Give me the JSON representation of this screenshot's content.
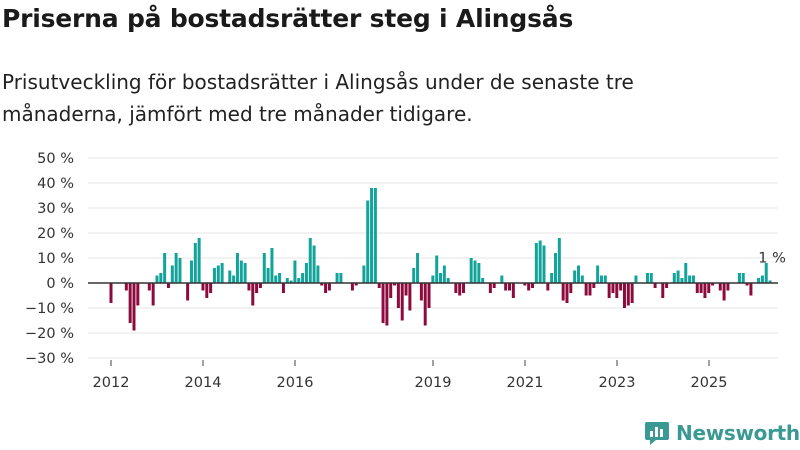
{
  "title": "Priserna på bostadsrätter steg i Alingsås",
  "subtitle": "Prisutveckling för bostadsrätter i Alingsås under de senaste tre månaderna, jämfört med tre månader tidigare.",
  "brand": {
    "name": "Newsworthy",
    "color": "#3a9a93"
  },
  "chart_data": {
    "type": "bar",
    "title": "Priserna på bostadsrätter steg i Alingsås",
    "xlabel": "",
    "ylabel": "",
    "ylim": [
      -30,
      50
    ],
    "y_ticks": [
      {
        "value": 50,
        "label": "50 %"
      },
      {
        "value": 40,
        "label": "40 %"
      },
      {
        "value": 30,
        "label": "30 %"
      },
      {
        "value": 20,
        "label": "20 %"
      },
      {
        "value": 10,
        "label": "10 %"
      },
      {
        "value": 0,
        "label": "0 %"
      },
      {
        "value": -10,
        "label": "−10 %"
      },
      {
        "value": -20,
        "label": "−20 %"
      },
      {
        "value": -30,
        "label": "−30 %"
      }
    ],
    "x_ticks": [
      {
        "year": 2012,
        "label": "2012"
      },
      {
        "year": 2014,
        "label": "2014"
      },
      {
        "year": 2016,
        "label": "2016"
      },
      {
        "year": 2019,
        "label": "2019"
      },
      {
        "year": 2021,
        "label": "2021"
      },
      {
        "year": 2023,
        "label": "2023"
      },
      {
        "year": 2025,
        "label": "2025"
      }
    ],
    "x_start": 2011.5,
    "x_end": 2026.5,
    "bar_step_years": 0.0833,
    "positive_color": "#12a39a",
    "negative_color": "#8c0a3c",
    "annotation": {
      "label": "1 %",
      "value": 1
    },
    "values": [
      -8,
      0,
      0,
      0,
      -3,
      -16,
      -19,
      -9,
      0,
      0,
      -3,
      -9,
      3,
      4,
      12,
      -2,
      7,
      12,
      10,
      0,
      -7,
      9,
      16,
      18,
      -3,
      -6,
      -4,
      6,
      7,
      8,
      0,
      5,
      3,
      12,
      9,
      8,
      -3,
      -9,
      -4,
      -2,
      12,
      6,
      14,
      3,
      4,
      -4,
      2,
      1,
      9,
      2,
      4,
      8,
      18,
      15,
      7,
      -1,
      -4,
      -3,
      0,
      4,
      4,
      0,
      0,
      -3,
      -1,
      0,
      7,
      33,
      38,
      38,
      -2,
      -16,
      -17,
      -6,
      -1,
      -10,
      -15,
      -5,
      -11,
      6,
      12,
      -7,
      -17,
      -10,
      3,
      11,
      4,
      7,
      2,
      0,
      -4,
      -5,
      -4,
      0,
      10,
      9,
      8,
      2,
      0,
      -4,
      -2,
      0,
      3,
      -3,
      -3,
      -6,
      0,
      0,
      -1,
      -3,
      -2,
      16,
      17,
      15,
      -3,
      4,
      12,
      18,
      -7,
      -8,
      -4,
      5,
      7,
      3,
      -5,
      -5,
      -2,
      7,
      3,
      3,
      -6,
      -4,
      -6,
      -3,
      -10,
      -9,
      -8,
      3,
      0,
      0,
      4,
      4,
      -2,
      0,
      -6,
      -2,
      0,
      4,
      5,
      2,
      8,
      3,
      3,
      -4,
      -4,
      -6,
      -4,
      -1,
      0,
      -3,
      -7,
      -3,
      0,
      0,
      4,
      4,
      -1,
      -5,
      0,
      2,
      3,
      8,
      1
    ]
  }
}
